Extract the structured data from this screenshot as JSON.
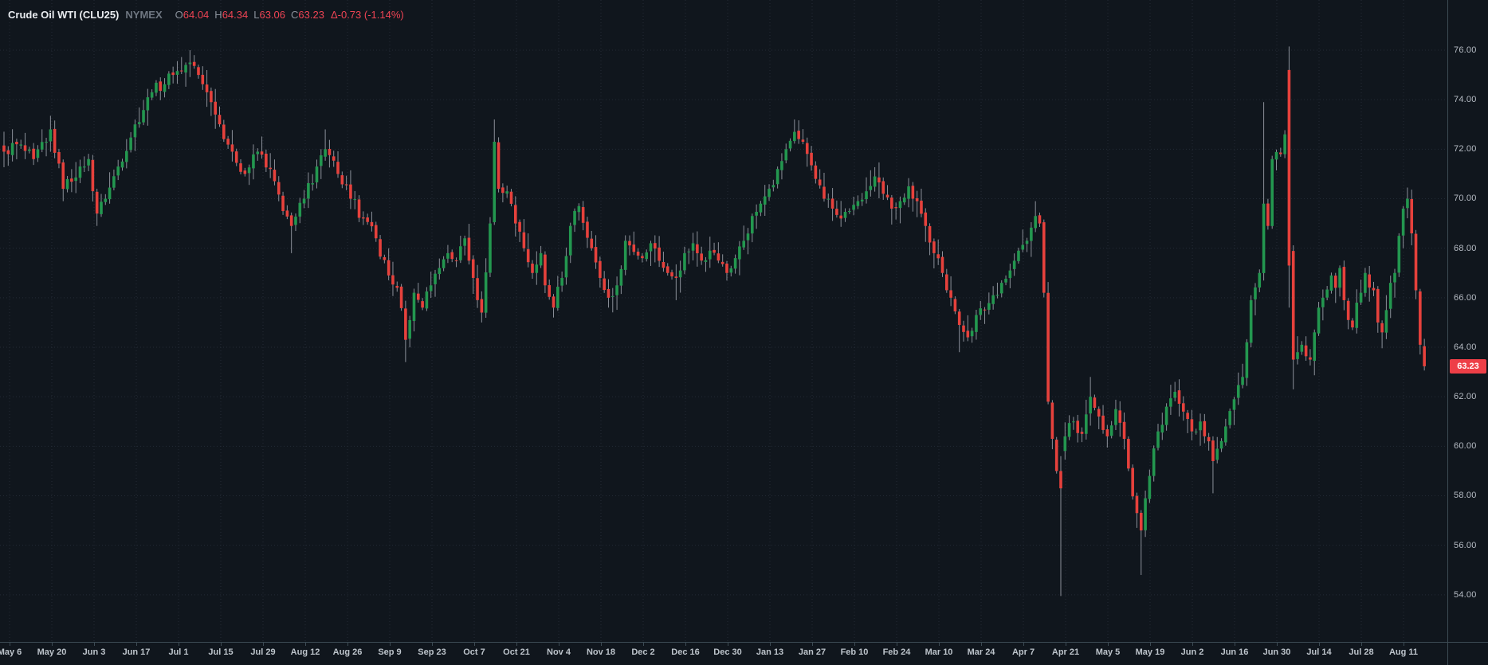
{
  "header": {
    "symbol": "Crude Oil WTI (CLU25)",
    "exchange": "NYMEX",
    "ohlc": [
      {
        "k": "O",
        "v": "64.04"
      },
      {
        "k": "H",
        "v": "64.34"
      },
      {
        "k": "L",
        "v": "63.06"
      },
      {
        "k": "C",
        "v": "63.23"
      }
    ],
    "change": "Δ-0.73 (-1.14%)"
  },
  "colors": {
    "bg": "#10161d",
    "up": "#23974f",
    "down": "#e6413c",
    "wick": "#8b9099",
    "grid": "#232b35",
    "axis_line": "#3c4a53",
    "value_red": "#ef4454",
    "badge_bg": "#ee3f47",
    "badge_text": "#ffffff"
  },
  "y_axis": {
    "ticks": [
      "76.00",
      "74.00",
      "72.00",
      "70.00",
      "68.00",
      "66.00",
      "64.00",
      "62.00",
      "60.00",
      "58.00",
      "56.00",
      "54.00"
    ],
    "last_price_label": "63.23",
    "last_price": 63.23
  },
  "x_axis": {
    "labels": [
      "May 6",
      "May 20",
      "Jun 3",
      "Jun 17",
      "Jul 1",
      "Jul 15",
      "Jul 29",
      "Aug 12",
      "Aug 26",
      "Sep 9",
      "Sep 23",
      "Oct 7",
      "Oct 21",
      "Nov 4",
      "Nov 18",
      "Dec 2",
      "Dec 16",
      "Dec 30",
      "Jan 13",
      "Jan 27",
      "Feb 10",
      "Feb 24",
      "Mar 10",
      "Mar 24",
      "Apr 7",
      "Apr 21",
      "May 5",
      "May 19",
      "Jun 2",
      "Jun 16",
      "Jun 30",
      "Jul 14",
      "Jul 28",
      "Aug 11"
    ]
  },
  "chart_data": {
    "type": "candlestick",
    "title": "Crude Oil WTI (CLU25) NYMEX daily",
    "bar_count": 337,
    "price_range_ticks": [
      76,
      54
    ],
    "anchors": [
      [
        0,
        71.9
      ],
      [
        3,
        72.2
      ],
      [
        7,
        71.6
      ],
      [
        10,
        72.3
      ],
      [
        11,
        72.8
      ],
      [
        14,
        70.4
      ],
      [
        18,
        71.3
      ],
      [
        20,
        71.6
      ],
      [
        22,
        69.4
      ],
      [
        24,
        70.0
      ],
      [
        27,
        71.3
      ],
      [
        31,
        73.0
      ],
      [
        35,
        74.3
      ],
      [
        40,
        75.0
      ],
      [
        44,
        75.5
      ],
      [
        46,
        75.0
      ],
      [
        48,
        74.3
      ],
      [
        50,
        73.4
      ],
      [
        54,
        71.9
      ],
      [
        57,
        71.0
      ],
      [
        60,
        71.9
      ],
      [
        63,
        71.2
      ],
      [
        66,
        69.5
      ],
      [
        68,
        68.9
      ],
      [
        71,
        70.0
      ],
      [
        74,
        71.3
      ],
      [
        76,
        72.0
      ],
      [
        79,
        71.0
      ],
      [
        82,
        70.0
      ],
      [
        85,
        69.2
      ],
      [
        88,
        68.4
      ],
      [
        91,
        66.9
      ],
      [
        93,
        66.4
      ],
      [
        95,
        64.3
      ],
      [
        97,
        66.2
      ],
      [
        99,
        65.6
      ],
      [
        101,
        66.5
      ],
      [
        103,
        67.2
      ],
      [
        105,
        67.8
      ],
      [
        107,
        67.5
      ],
      [
        109,
        68.4
      ],
      [
        111,
        66.8
      ],
      [
        113,
        65.4
      ],
      [
        115,
        69.0
      ],
      [
        116,
        72.3
      ],
      [
        117,
        70.4
      ],
      [
        119,
        70.3
      ],
      [
        121,
        69.0
      ],
      [
        123,
        68.0
      ],
      [
        125,
        67.0
      ],
      [
        127,
        67.8
      ],
      [
        128,
        66.5
      ],
      [
        130,
        65.6
      ],
      [
        132,
        66.8
      ],
      [
        134,
        68.9
      ],
      [
        136,
        69.7
      ],
      [
        139,
        68.0
      ],
      [
        141,
        66.8
      ],
      [
        143,
        66.0
      ],
      [
        145,
        66.5
      ],
      [
        147,
        68.3
      ],
      [
        151,
        67.6
      ],
      [
        153,
        68.2
      ],
      [
        157,
        67.0
      ],
      [
        159,
        66.8
      ],
      [
        161,
        67.8
      ],
      [
        163,
        68.2
      ],
      [
        165,
        67.5
      ],
      [
        167,
        67.9
      ],
      [
        169,
        67.5
      ],
      [
        171,
        67.0
      ],
      [
        173,
        67.6
      ],
      [
        175,
        68.3
      ],
      [
        177,
        69.3
      ],
      [
        179,
        69.8
      ],
      [
        181,
        70.4
      ],
      [
        183,
        71.2
      ],
      [
        185,
        72.0
      ],
      [
        187,
        72.7
      ],
      [
        189,
        72.3
      ],
      [
        192,
        70.8
      ],
      [
        194,
        70.0
      ],
      [
        196,
        69.6
      ],
      [
        198,
        69.2
      ],
      [
        200,
        69.5
      ],
      [
        202,
        69.9
      ],
      [
        204,
        70.3
      ],
      [
        206,
        70.9
      ],
      [
        208,
        70.2
      ],
      [
        210,
        69.6
      ],
      [
        212,
        69.9
      ],
      [
        214,
        70.5
      ],
      [
        216,
        69.9
      ],
      [
        218,
        68.9
      ],
      [
        220,
        67.8
      ],
      [
        222,
        67.0
      ],
      [
        224,
        66.0
      ],
      [
        226,
        64.9
      ],
      [
        228,
        64.4
      ],
      [
        230,
        65.3
      ],
      [
        232,
        65.5
      ],
      [
        234,
        66.1
      ],
      [
        236,
        66.6
      ],
      [
        238,
        67.1
      ],
      [
        240,
        67.9
      ],
      [
        242,
        68.3
      ],
      [
        244,
        69.3
      ],
      [
        245,
        69.0
      ],
      [
        246,
        66.2
      ],
      [
        247,
        61.8
      ],
      [
        248,
        60.3
      ],
      [
        249,
        59.0
      ],
      [
        251,
        60.4
      ],
      [
        253,
        61.0
      ],
      [
        255,
        60.5
      ],
      [
        257,
        62.0
      ],
      [
        259,
        61.2
      ],
      [
        261,
        60.4
      ],
      [
        263,
        61.5
      ],
      [
        265,
        60.3
      ],
      [
        266,
        59.1
      ],
      [
        268,
        57.3
      ],
      [
        269,
        56.6
      ],
      [
        270,
        57.9
      ],
      [
        271,
        58.8
      ],
      [
        273,
        60.6
      ],
      [
        275,
        61.6
      ],
      [
        277,
        62.2
      ],
      [
        279,
        61.4
      ],
      [
        281,
        60.6
      ],
      [
        283,
        61.0
      ],
      [
        285,
        60.2
      ],
      [
        286,
        59.4
      ],
      [
        287,
        59.9
      ],
      [
        289,
        60.8
      ],
      [
        291,
        61.9
      ],
      [
        293,
        62.8
      ],
      [
        294,
        64.2
      ],
      [
        295,
        65.9
      ],
      [
        297,
        67.0
      ],
      [
        298,
        69.8
      ],
      [
        299,
        68.9
      ],
      [
        300,
        71.6
      ],
      [
        302,
        71.8
      ],
      [
        303,
        72.6
      ],
      [
        305,
        63.5
      ],
      [
        306,
        63.8
      ],
      [
        307,
        64.1
      ],
      [
        309,
        63.5
      ],
      [
        310,
        64.6
      ],
      [
        311,
        65.6
      ],
      [
        312,
        66.0
      ],
      [
        314,
        66.9
      ],
      [
        315,
        66.4
      ],
      [
        316,
        67.2
      ],
      [
        317,
        65.9
      ],
      [
        318,
        65.1
      ],
      [
        319,
        64.8
      ],
      [
        320,
        65.8
      ],
      [
        321,
        66.2
      ],
      [
        322,
        67.0
      ],
      [
        324,
        66.3
      ],
      [
        325,
        65.0
      ],
      [
        326,
        64.6
      ],
      [
        327,
        65.5
      ],
      [
        328,
        66.6
      ],
      [
        329,
        67.0
      ],
      [
        330,
        68.5
      ],
      [
        331,
        69.6
      ],
      [
        332,
        70.0
      ],
      [
        333,
        68.6
      ],
      [
        334,
        66.3
      ],
      [
        335,
        64.1
      ],
      [
        336,
        63.23
      ]
    ],
    "wick_overrides": [
      [
        11,
        "h",
        73.35
      ],
      [
        14,
        "l",
        69.9
      ],
      [
        22,
        "l",
        68.9
      ],
      [
        44,
        "h",
        76.0
      ],
      [
        68,
        "l",
        67.8
      ],
      [
        76,
        "h",
        72.8
      ],
      [
        95,
        "l",
        63.4
      ],
      [
        113,
        "l",
        65.0
      ],
      [
        116,
        "h",
        73.2
      ],
      [
        130,
        "l",
        65.2
      ],
      [
        143,
        "l",
        65.6
      ],
      [
        159,
        "l",
        65.9
      ],
      [
        187,
        "h",
        73.2
      ],
      [
        226,
        "l",
        63.8
      ],
      [
        244,
        "h",
        69.9
      ],
      [
        257,
        "h",
        62.8
      ],
      [
        269,
        "l",
        54.8
      ],
      [
        277,
        "h",
        62.6
      ],
      [
        286,
        "l",
        58.1
      ],
      [
        298,
        "h",
        73.9
      ],
      [
        305,
        "l",
        62.3
      ],
      [
        332,
        "h",
        70.45
      ]
    ],
    "special_bars": [
      {
        "i": 250,
        "o": 59.0,
        "h": 59.6,
        "l": 53.95,
        "c": 58.3
      },
      {
        "i": 304,
        "o": 75.2,
        "h": 76.15,
        "l": 65.6,
        "c": 67.3
      },
      {
        "i": 336,
        "o": 64.04,
        "h": 64.34,
        "l": 63.06,
        "c": 63.23
      }
    ]
  }
}
